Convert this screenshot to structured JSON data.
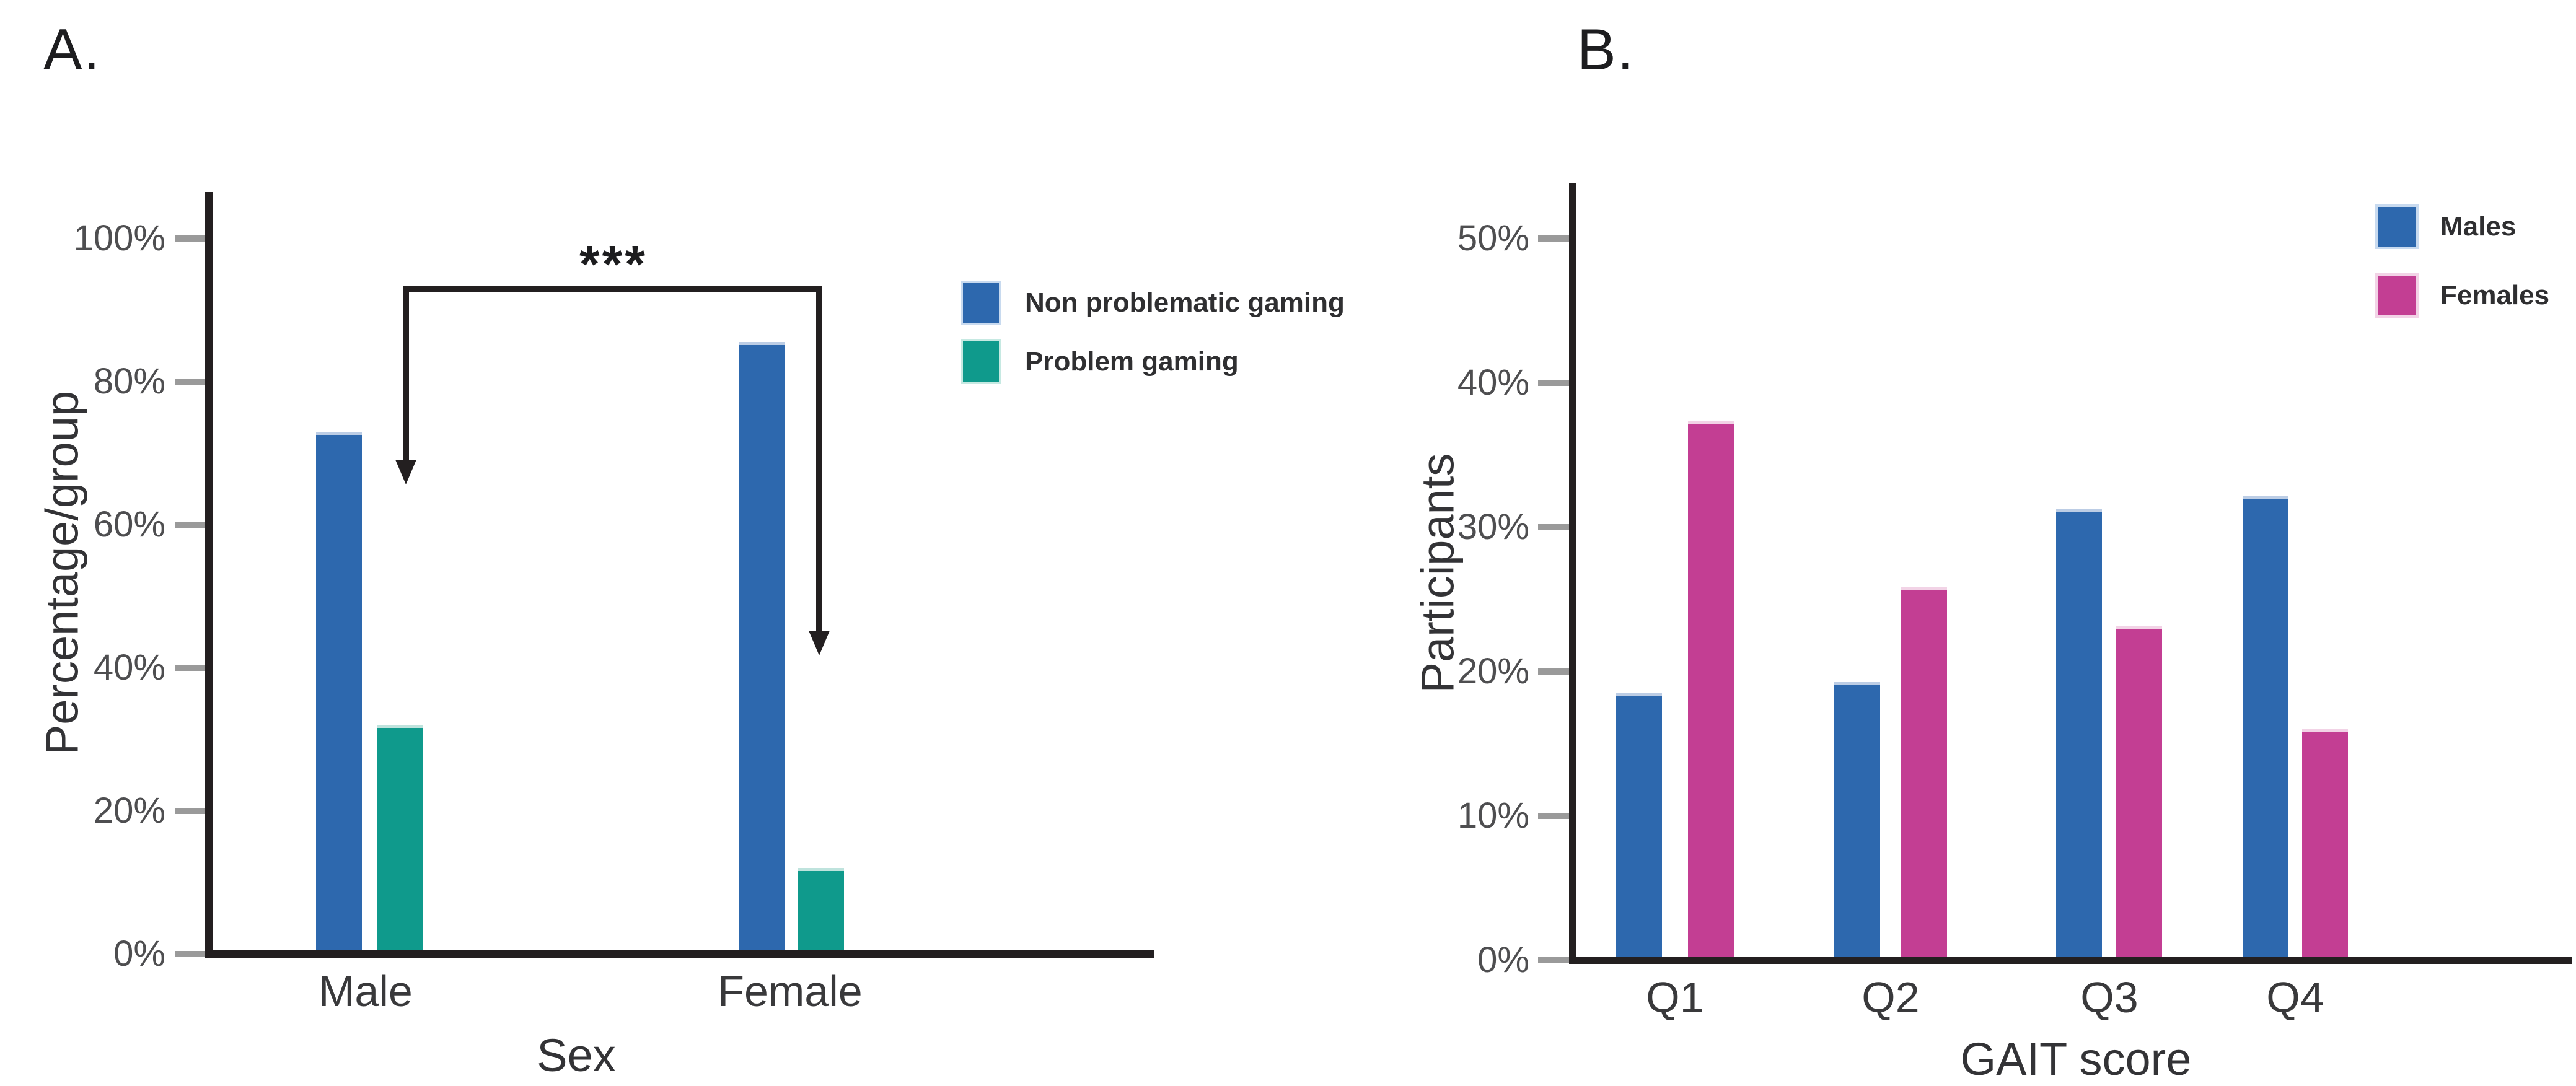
{
  "figure": {
    "panel_a_label": "A.",
    "panel_b_label": "B."
  },
  "colors": {
    "axis": "#231f20",
    "tick_mark": "#9a9a9a",
    "blue": "#2d68ae",
    "teal": "#0f9a8c",
    "magenta": "#c33e93",
    "blue_edge": "#bccde5",
    "teal_edge": "#bfe3dd",
    "magenta_edge": "#f2d3e6"
  },
  "chart_data": [
    {
      "type": "bar",
      "panel": "A",
      "categories": [
        "Male",
        "Female"
      ],
      "series": [
        {
          "name": "Non problematic gaming",
          "color": "#2d68ae",
          "edge": "#bccde5",
          "values": [
            72.5,
            85.0
          ]
        },
        {
          "name": "Problem gaming",
          "color": "#0f9a8c",
          "edge": "#bfe3dd",
          "values": [
            31.5,
            11.5
          ]
        }
      ],
      "xlabel": "Sex",
      "ylabel": "Percentage/group",
      "ylim": [
        0,
        106
      ],
      "y_ticks": [
        {
          "label": "0%",
          "value": 0
        },
        {
          "label": "20%",
          "value": 20
        },
        {
          "label": "40%",
          "value": 40
        },
        {
          "label": "60%",
          "value": 60
        },
        {
          "label": "80%",
          "value": 80
        },
        {
          "label": "100%",
          "value": 100
        }
      ],
      "grid": false,
      "legend_position": "right-of-plot-top",
      "annotation": {
        "type": "significance-bracket",
        "text": "***",
        "from": "Male Problem gaming bar",
        "to": "Female Problem gaming bar"
      }
    },
    {
      "type": "bar",
      "panel": "B",
      "categories": [
        "Q1",
        "Q2",
        "Q3",
        "Q4"
      ],
      "series": [
        {
          "name": "Males",
          "color": "#2d68ae",
          "edge": "#bccde5",
          "values": [
            18.3,
            19.0,
            31.0,
            31.9
          ]
        },
        {
          "name": "Females",
          "color": "#c33e93",
          "edge": "#f2d3e6",
          "values": [
            37.1,
            25.6,
            22.9,
            15.8
          ]
        }
      ],
      "xlabel": "GAIT score",
      "ylabel": "Participants",
      "ylim": [
        0,
        54
      ],
      "y_ticks": [
        {
          "label": "0%",
          "value": 0
        },
        {
          "label": "10%",
          "value": 10
        },
        {
          "label": "20%",
          "value": 20
        },
        {
          "label": "30%",
          "value": 30
        },
        {
          "label": "40%",
          "value": 40
        },
        {
          "label": "50%",
          "value": 50
        }
      ],
      "grid": false,
      "legend_position": "right-top"
    }
  ]
}
